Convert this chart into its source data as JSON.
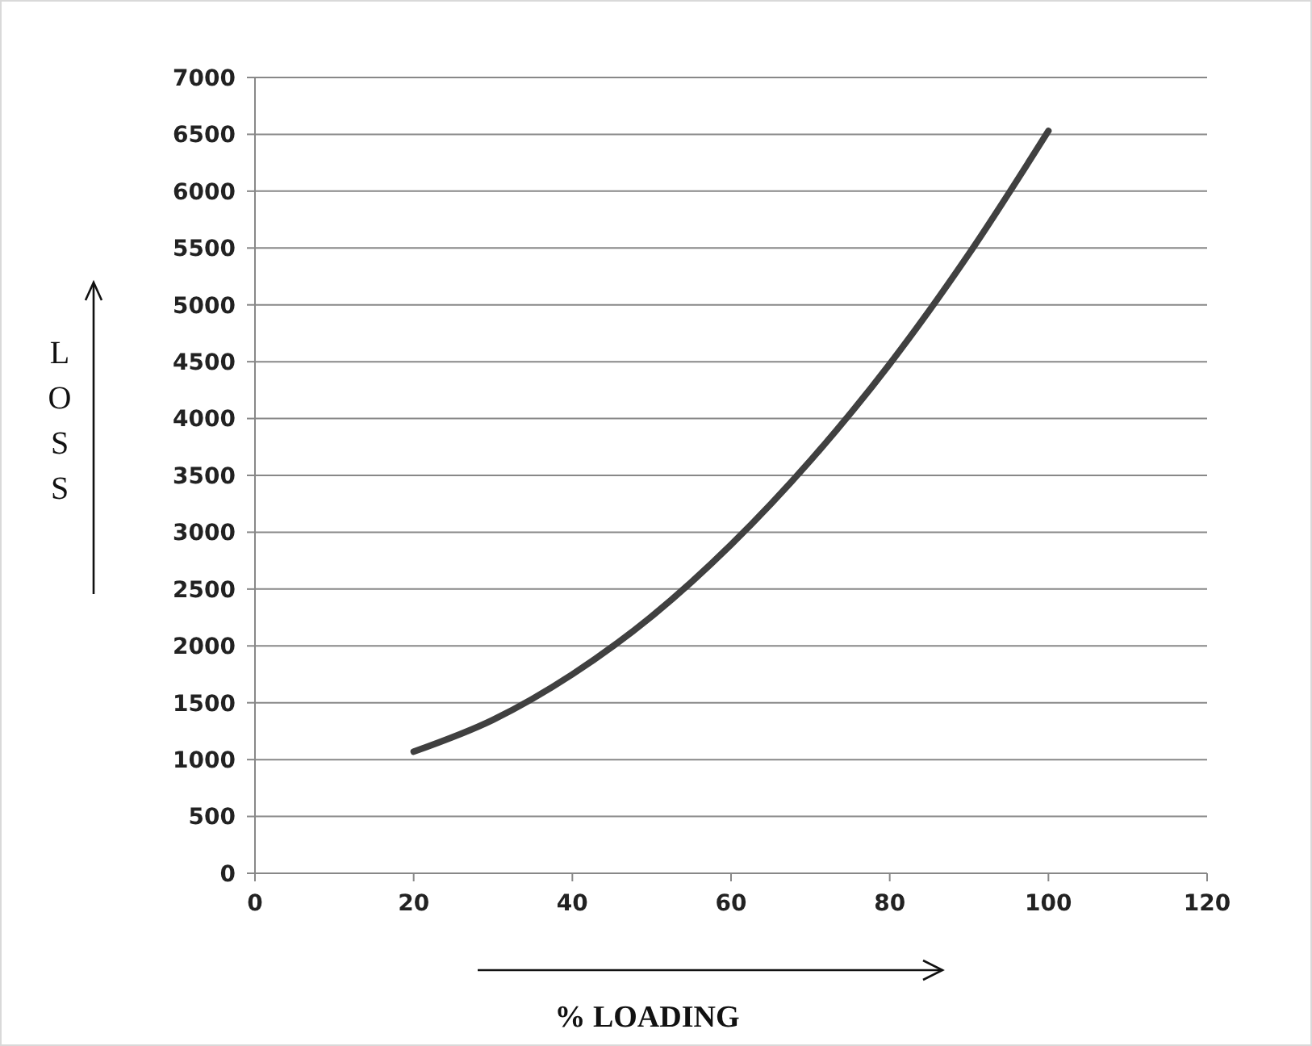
{
  "chart_data": {
    "type": "line",
    "xlabel": "% LOADING",
    "ylabel": "LOSS",
    "x": [
      20,
      30,
      40,
      50,
      60,
      70,
      80,
      90,
      100
    ],
    "series": [
      {
        "color": "#404040",
        "values": [
          1070,
          1350,
          1750,
          2260,
          2890,
          3630,
          4480,
          5450,
          6530
        ]
      }
    ],
    "xlim": [
      0,
      120
    ],
    "xticks": [
      0,
      20,
      40,
      60,
      80,
      100,
      120
    ],
    "ylim": [
      0,
      7000
    ],
    "yticks": [
      0,
      500,
      1000,
      1500,
      2000,
      2500,
      3000,
      3500,
      4000,
      4500,
      5000,
      5500,
      6000,
      6500,
      7000
    ],
    "grid": "y",
    "marker": "none",
    "line_style": "solid"
  }
}
